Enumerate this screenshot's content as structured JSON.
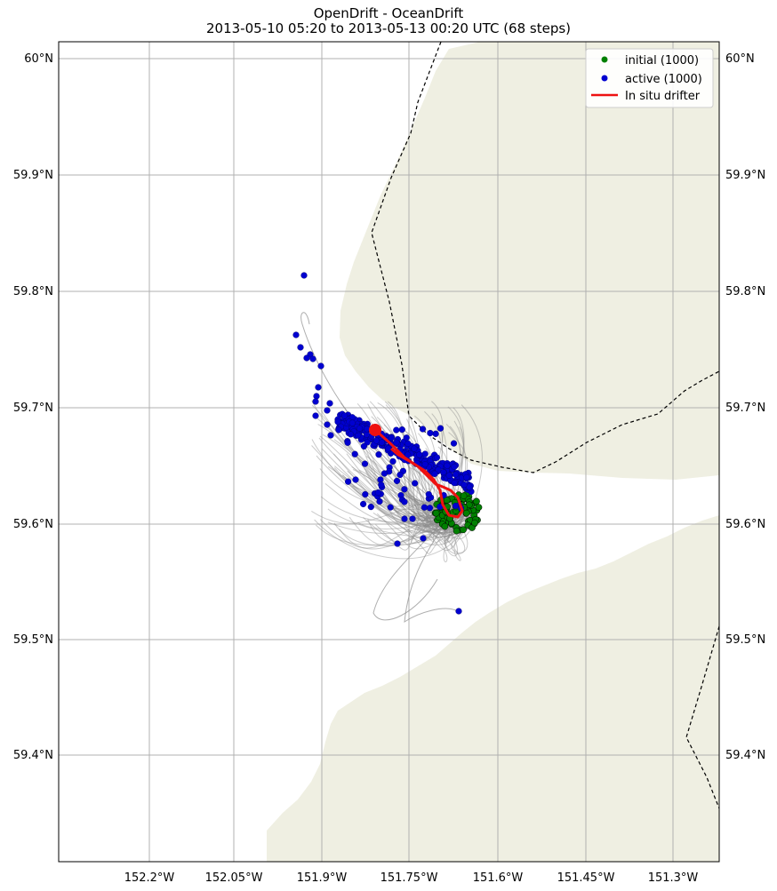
{
  "title": {
    "line1": "OpenDrift - OceanDrift",
    "line2": "2013-05-10 05:20 to 2013-05-13 00:20 UTC (68 steps)"
  },
  "axes": {
    "lon_ticks": [
      "152.2°W",
      "152.05°W",
      "151.9°W",
      "151.75°W",
      "151.6°W",
      "151.45°W",
      "151.3°W"
    ],
    "lat_ticks_left": [
      "60°N",
      "59.9°N",
      "59.8°N",
      "59.7°N",
      "59.6°N",
      "59.5°N",
      "59.4°N"
    ],
    "lat_ticks_right": [
      "60°N",
      "59.9°N",
      "59.8°N",
      "59.7°N",
      "59.6°N",
      "59.5°N",
      "59.4°N"
    ]
  },
  "legend": {
    "placement": "top-right",
    "items": [
      {
        "label": "initial (1000)",
        "color": "#008000"
      },
      {
        "label": "active (1000)",
        "color": "#0000d0"
      },
      {
        "label": "In situ drifter",
        "color": "#ee1111"
      }
    ]
  },
  "colors": {
    "land": "#efefe2",
    "trajectory": "#8c8c8c",
    "grid": "#b0b0b0",
    "boundary": "#000000"
  }
}
